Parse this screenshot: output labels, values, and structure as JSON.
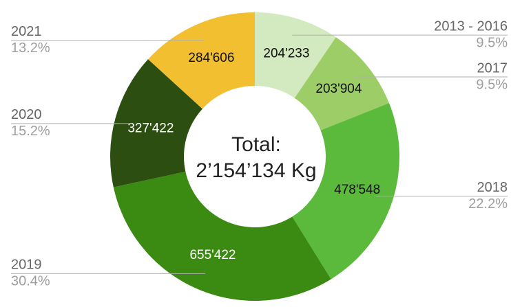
{
  "chart_data": {
    "type": "donut",
    "center_text": [
      "Total:",
      "2’154’134 Kg"
    ],
    "categories": [
      "2013 - 2016",
      "2017",
      "2018",
      "2019",
      "2020",
      "2021"
    ],
    "values": [
      204233,
      203904,
      478548,
      655422,
      327422,
      284606
    ],
    "value_labels": [
      "204'233",
      "203'904",
      "478'548",
      "655'422",
      "327'422",
      "284'606"
    ],
    "percent_labels": [
      "9.5%",
      "9.5%",
      "22.2%",
      "30.4%",
      "15.2%",
      "13.2%"
    ],
    "colors": [
      "#d3e9c0",
      "#9ccd66",
      "#5bb93b",
      "#3b8a12",
      "#2c4e10",
      "#f1bf30"
    ]
  }
}
